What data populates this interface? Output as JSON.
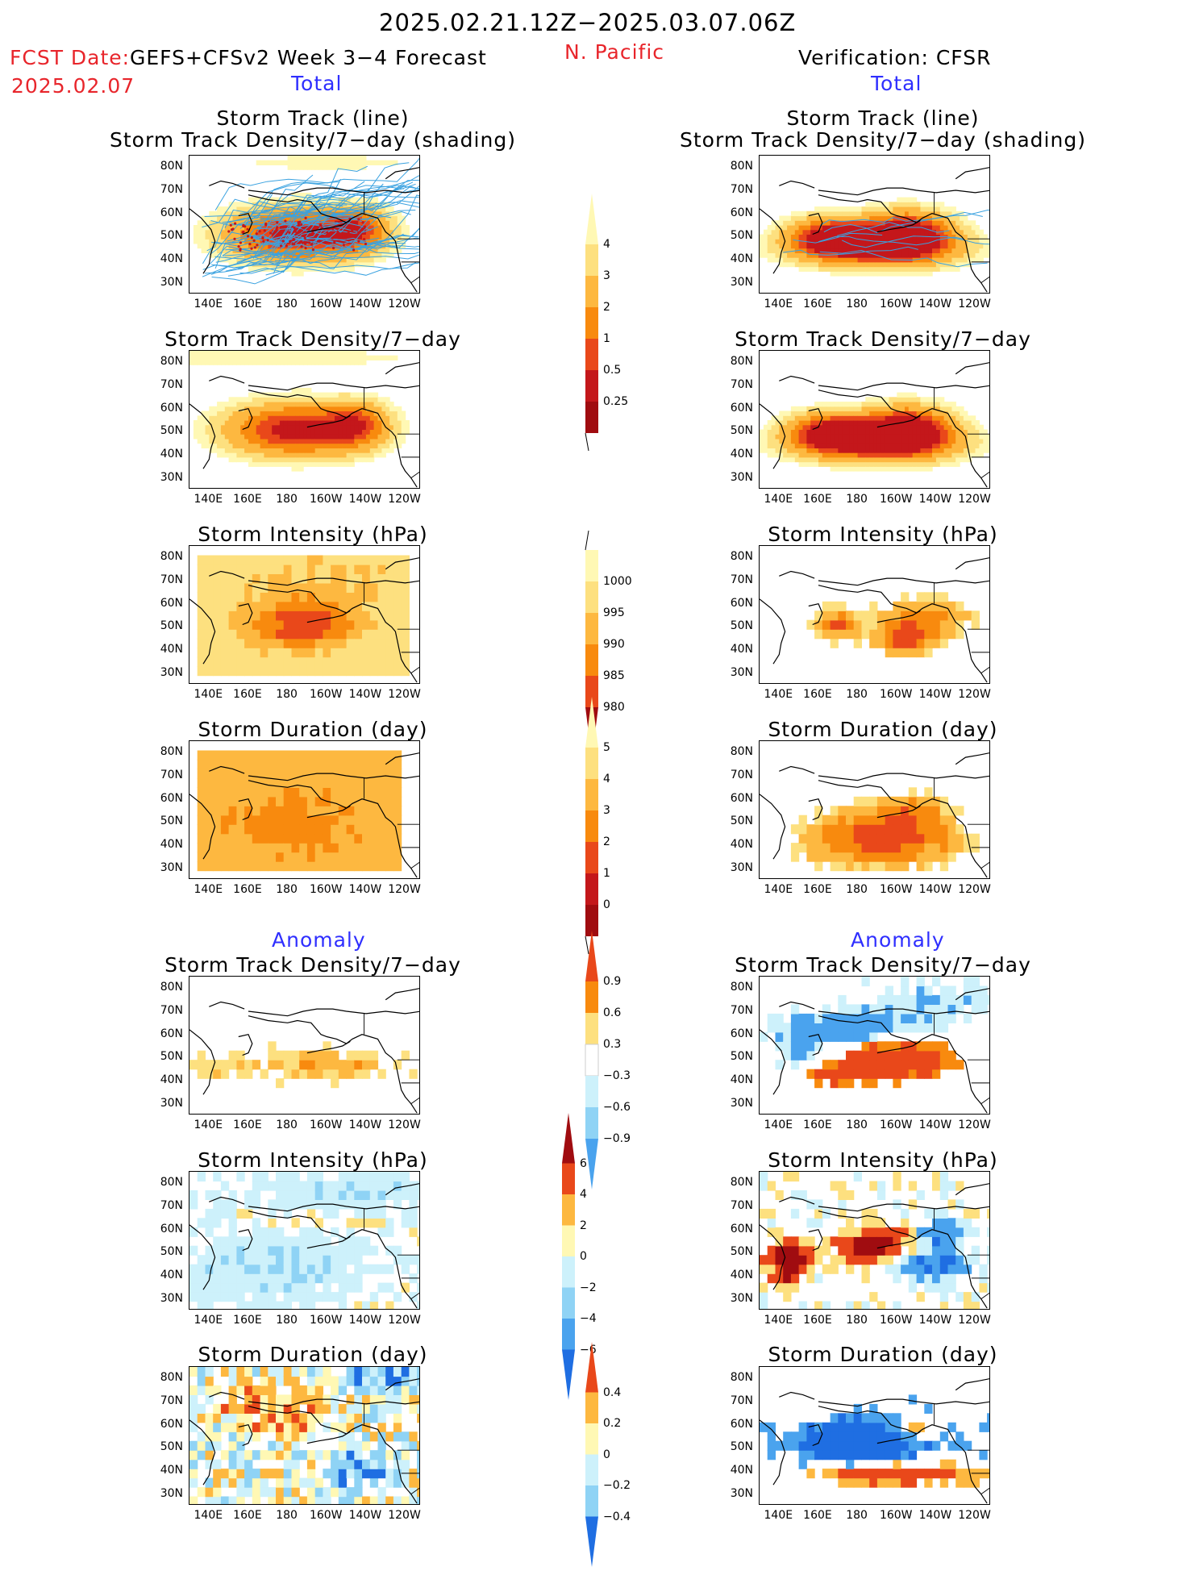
{
  "header": {
    "period": "2025.02.21.12Z−2025.03.07.06Z",
    "fcst_label": "FCST Date:",
    "fcst_date": "2025.02.07",
    "model": "GEFS+CFSv2 Week 3−4 Forecast",
    "region": "N. Pacific",
    "verification": "Verification: CFSR"
  },
  "sections": {
    "total_label": "Total",
    "anomaly_label": "Anomaly"
  },
  "axis": {
    "y_ticks": [
      "80N",
      "70N",
      "60N",
      "50N",
      "40N",
      "30N"
    ],
    "x_ticks": [
      "140E",
      "160E",
      "180",
      "160W",
      "140W",
      "120W"
    ]
  },
  "panel_titles": {
    "track_line": "Storm Track (line)",
    "track_shading": "Storm Track Density/7−day (shading)",
    "density": "Storm Track Density/7−day",
    "intensity": "Storm Intensity (hPa)",
    "duration": "Storm Duration (day)"
  },
  "colorbars": {
    "density_total": [
      "4",
      "3",
      "2",
      "1",
      "0.5",
      "0.25"
    ],
    "intensity_total": [
      "1000",
      "995",
      "990",
      "985",
      "980"
    ],
    "duration_total": [
      "5",
      "4",
      "3",
      "2",
      "1",
      "0"
    ],
    "density_anom": [
      "0.9",
      "0.6",
      "0.3",
      "−0.3",
      "−0.6",
      "−0.9"
    ],
    "intensity_anom": [
      "6",
      "4",
      "2",
      "0",
      "−2",
      "−4",
      "−6"
    ],
    "duration_anom": [
      "0.4",
      "0.2",
      "0",
      "−0.2",
      "−0.4"
    ]
  },
  "colors": {
    "warm": [
      "#fff8b4",
      "#fde07f",
      "#fdb840",
      "#f88a0e",
      "#e9481a",
      "#c4171b",
      "#a00c10"
    ],
    "cool": [
      "#cdf1fb",
      "#8fd3f5",
      "#4aa3ee",
      "#1f6ee2"
    ],
    "track_line": "#3aa2e0"
  },
  "chart_data": [
    {
      "type": "heatmap",
      "title": "Storm Track (line) / Storm Track Density/7−day (shading)",
      "panel": "forecast-total",
      "levels": [
        0.25,
        0.5,
        1,
        2,
        3,
        4
      ]
    },
    {
      "type": "heatmap",
      "title": "Storm Track (line) / Storm Track Density/7−day (shading)",
      "panel": "verification-total",
      "levels": [
        0.25,
        0.5,
        1,
        2,
        3,
        4
      ]
    },
    {
      "type": "heatmap",
      "title": "Storm Track Density/7−day",
      "panel": "forecast-total",
      "levels": [
        0.25,
        0.5,
        1,
        2,
        3,
        4
      ]
    },
    {
      "type": "heatmap",
      "title": "Storm Track Density/7−day",
      "panel": "verification-total",
      "levels": [
        0.25,
        0.5,
        1,
        2,
        3,
        4
      ]
    },
    {
      "type": "heatmap",
      "title": "Storm Intensity (hPa)",
      "panel": "forecast-total",
      "levels": [
        980,
        985,
        990,
        995,
        1000
      ]
    },
    {
      "type": "heatmap",
      "title": "Storm Intensity (hPa)",
      "panel": "verification-total",
      "levels": [
        980,
        985,
        990,
        995,
        1000
      ]
    },
    {
      "type": "heatmap",
      "title": "Storm Duration (day)",
      "panel": "forecast-total",
      "levels": [
        0,
        1,
        2,
        3,
        4,
        5
      ]
    },
    {
      "type": "heatmap",
      "title": "Storm Duration (day)",
      "panel": "verification-total",
      "levels": [
        0,
        1,
        2,
        3,
        4,
        5
      ]
    },
    {
      "type": "heatmap",
      "title": "Storm Track Density/7−day",
      "panel": "forecast-anomaly",
      "levels": [
        -0.9,
        -0.6,
        -0.3,
        0.3,
        0.6,
        0.9
      ]
    },
    {
      "type": "heatmap",
      "title": "Storm Track Density/7−day",
      "panel": "verification-anomaly",
      "levels": [
        -0.9,
        -0.6,
        -0.3,
        0.3,
        0.6,
        0.9
      ]
    },
    {
      "type": "heatmap",
      "title": "Storm Intensity (hPa)",
      "panel": "forecast-anomaly",
      "levels": [
        -6,
        -4,
        -2,
        0,
        2,
        4,
        6
      ]
    },
    {
      "type": "heatmap",
      "title": "Storm Intensity (hPa)",
      "panel": "verification-anomaly",
      "levels": [
        -6,
        -4,
        -2,
        0,
        2,
        4,
        6
      ]
    },
    {
      "type": "heatmap",
      "title": "Storm Duration (day)",
      "panel": "forecast-anomaly",
      "levels": [
        -0.4,
        -0.2,
        0,
        0.2,
        0.4
      ]
    },
    {
      "type": "heatmap",
      "title": "Storm Duration (day)",
      "panel": "verification-anomaly",
      "levels": [
        -0.4,
        -0.2,
        0,
        0.2,
        0.4
      ]
    }
  ]
}
